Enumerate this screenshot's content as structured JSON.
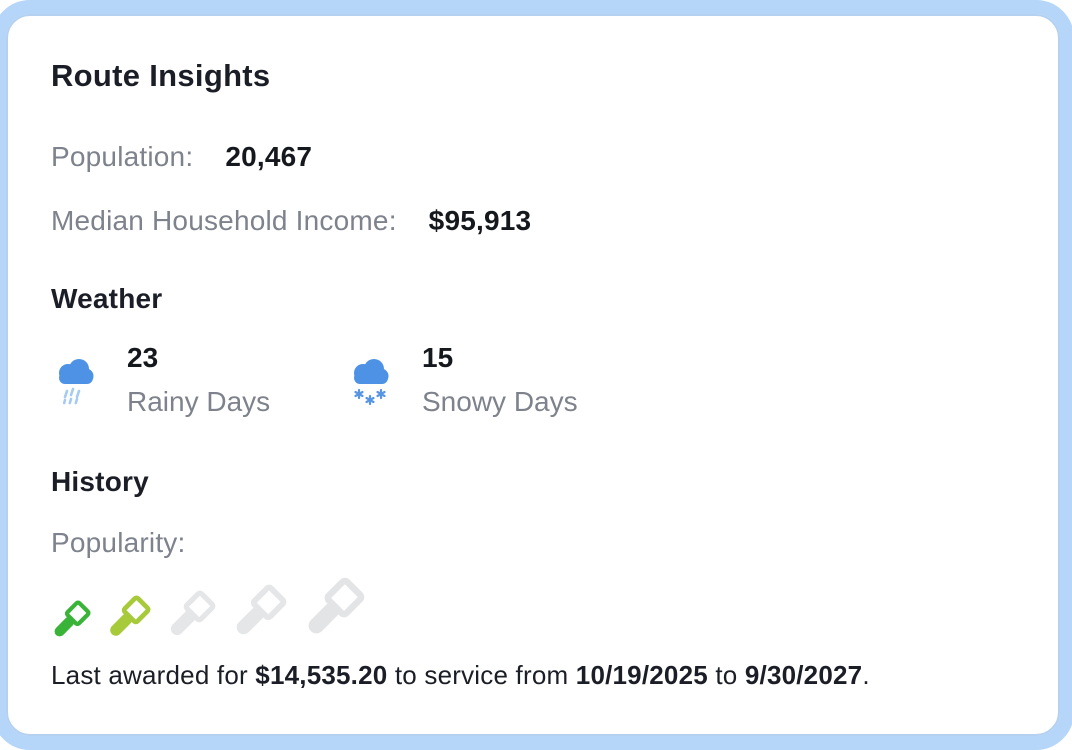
{
  "colors": {
    "frame_blue": "#b5d6f9",
    "frame_ring": "#9cc2ee",
    "cloud_blue": "#4d92e4",
    "rain_drop": "#a6cbf2",
    "snow_flake": "#5896e4",
    "text_dark": "#1b1e26",
    "text_value": "#15181d",
    "text_gray": "#7d828c"
  },
  "card": {
    "title": "Route Insights",
    "stats": [
      {
        "label": "Population:",
        "value": "20,467"
      },
      {
        "label": "Median Household Income:",
        "value": "$95,913"
      }
    ],
    "weather": {
      "heading": "Weather",
      "items": [
        {
          "icon": "rain-cloud-icon",
          "value": "23",
          "label": "Rainy Days"
        },
        {
          "icon": "snow-cloud-icon",
          "value": "15",
          "label": "Snowy Days"
        }
      ]
    },
    "history": {
      "heading": "History",
      "popularity_label": "Popularity:",
      "popularity_filled": 2,
      "popularity_total": 5,
      "popularity_icons": [
        {
          "name": "gavel-icon",
          "state": "filled",
          "color": "#3ab438",
          "size": 42
        },
        {
          "name": "gavel-icon",
          "state": "filled",
          "color": "#a7ca3b",
          "size": 47
        },
        {
          "name": "gavel-icon",
          "state": "empty",
          "color": "#e5e6e8",
          "size": 52
        },
        {
          "name": "gavel-icon",
          "state": "empty",
          "color": "#e5e6e8",
          "size": 58
        },
        {
          "name": "gavel-icon",
          "state": "empty",
          "color": "#e3e4e6",
          "size": 65
        }
      ],
      "last_award": {
        "prefix": "Last awarded for ",
        "amount": "$14,535.20",
        "middle": " to service from ",
        "start_date": "10/19/2025",
        "to_word": " to ",
        "end_date": "9/30/2027",
        "suffix": "."
      }
    }
  }
}
